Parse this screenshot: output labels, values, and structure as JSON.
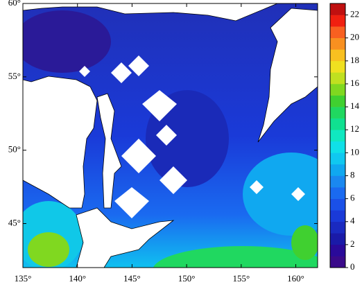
{
  "chart_data": {
    "type": "map",
    "xlim": [
      135,
      162
    ],
    "ylim": [
      42,
      60
    ],
    "xticks": [
      {
        "value": 135,
        "label": "135°"
      },
      {
        "value": 140,
        "label": "140°"
      },
      {
        "value": 145,
        "label": "145°"
      },
      {
        "value": 150,
        "label": "150°"
      },
      {
        "value": 155,
        "label": "155°"
      },
      {
        "value": 160,
        "label": "160°"
      }
    ],
    "yticks": [
      {
        "value": 45,
        "label": "45°"
      },
      {
        "value": 50,
        "label": "50°"
      },
      {
        "value": 55,
        "label": "55°"
      },
      {
        "value": 60,
        "label": "60°"
      }
    ],
    "clim": [
      0,
      23
    ],
    "cticks": [
      0,
      2,
      4,
      6,
      8,
      10,
      12,
      14,
      16,
      18,
      20,
      22
    ],
    "colors": [
      "#3a0a8a",
      "#2a0a9a",
      "#1a1aa8",
      "#1a2ac0",
      "#1a3ad8",
      "#1a50e8",
      "#1a6af0",
      "#1a88f0",
      "#10a8f0",
      "#10c8f0",
      "#10e0e8",
      "#10e8c0",
      "#10e090",
      "#20d860",
      "#40d030",
      "#80d820",
      "#c0e020",
      "#f0e020",
      "#f8c020",
      "#f89020",
      "#f86020",
      "#f02010",
      "#c01010"
    ]
  }
}
